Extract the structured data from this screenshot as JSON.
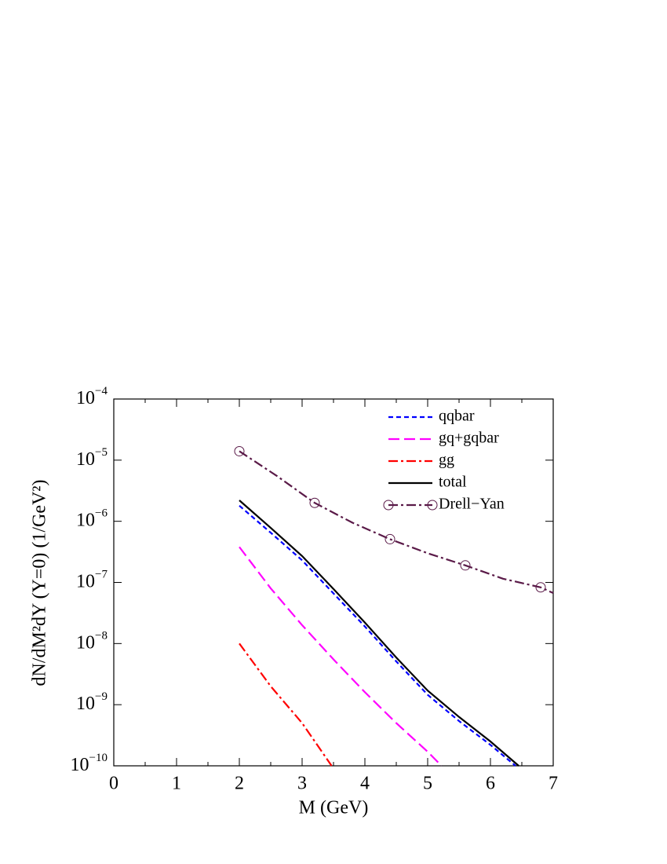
{
  "chart_data": {
    "type": "line",
    "x_label": "M (GeV)",
    "y_label": "dN/dM²dY (Y=0) (1/GeV²)",
    "log_y": true,
    "legend": "upper right",
    "xlim": [
      0,
      7
    ],
    "xticks": [
      0,
      1,
      2,
      3,
      4,
      5,
      6,
      7
    ],
    "ylim": [
      1e-10,
      0.0001
    ],
    "yticks": [
      {
        "value": 1e-10,
        "label": "10−10"
      },
      {
        "value": 1e-09,
        "label": "10−9"
      },
      {
        "value": 1e-08,
        "label": "10−8"
      },
      {
        "value": 1e-07,
        "label": "10−7"
      },
      {
        "value": 1e-06,
        "label": "10−6"
      },
      {
        "value": 1e-05,
        "label": "10−5"
      },
      {
        "value": 0.0001,
        "label": "10−4"
      }
    ],
    "series": [
      {
        "name": "qqbar",
        "color": "#0000ff",
        "dash": "6,4",
        "x": [
          2,
          2.5,
          3,
          3.5,
          4,
          4.5,
          5,
          5.5,
          6,
          6.4
        ],
        "values": [
          1.8e-06,
          6.5e-07,
          2.3e-07,
          6.6e-08,
          1.9e-08,
          5.1e-09,
          1.45e-09,
          5.4e-10,
          2.2e-10,
          1e-10
        ]
      },
      {
        "name": "gq+gqbar",
        "color": "#ff00ff",
        "dash": "14,6",
        "x": [
          2,
          2.5,
          3,
          3.5,
          4,
          4.5,
          5,
          5.22
        ],
        "values": [
          3.8e-07,
          8e-08,
          2e-08,
          5.5e-09,
          1.6e-09,
          5e-10,
          1.7e-10,
          1e-10
        ]
      },
      {
        "name": "gg",
        "color": "#ff0000",
        "dash": "12,4,3,4",
        "x": [
          2,
          2.5,
          3,
          3.47
        ],
        "values": [
          1e-08,
          2e-09,
          5e-10,
          1e-10
        ]
      },
      {
        "name": "total",
        "color": "#000000",
        "dash": "none",
        "x": [
          2,
          2.5,
          3,
          3.5,
          4,
          4.5,
          5,
          5.5,
          6,
          6.45
        ],
        "values": [
          2.2e-06,
          7.8e-07,
          2.7e-07,
          7.8e-08,
          2.2e-08,
          5.9e-09,
          1.7e-09,
          6.3e-10,
          2.5e-10,
          1e-10
        ]
      },
      {
        "name": "Drell−Yan",
        "color": "#5a1a48",
        "dash": "12,4,3,4",
        "marker": "circle",
        "markevery": 2,
        "x": [
          2,
          2.6,
          3.2,
          3.8,
          4.4,
          5,
          5.6,
          6.2,
          6.8,
          7
        ],
        "values": [
          1.4e-05,
          5.5e-06,
          2e-06,
          9.5e-07,
          5.1e-07,
          3e-07,
          1.9e-07,
          1.15e-07,
          8.3e-08,
          6.7e-08
        ]
      }
    ]
  }
}
